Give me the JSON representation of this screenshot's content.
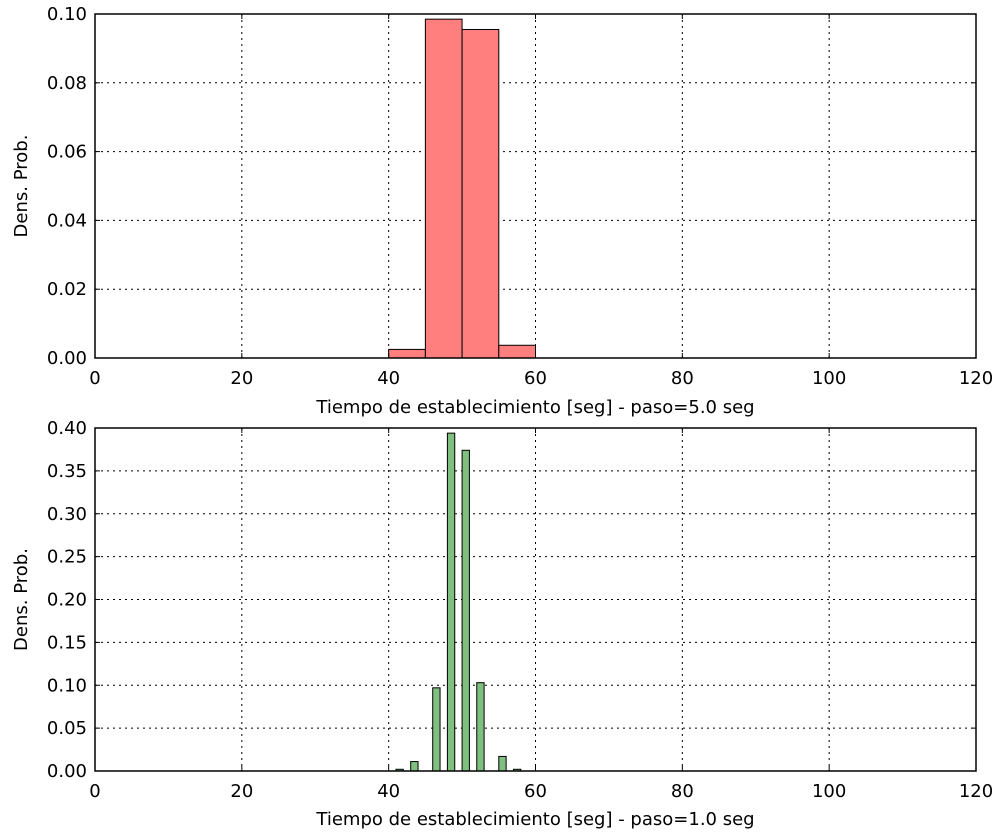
{
  "chart_data": [
    {
      "type": "bar",
      "title": "",
      "xlabel": "Tiempo de establecimiento [seg] - paso=5.0 seg",
      "ylabel": "Dens. Prob.",
      "xlim": [
        0,
        120
      ],
      "ylim": [
        0,
        0.1
      ],
      "xticks": [
        0,
        20,
        40,
        60,
        80,
        100,
        120
      ],
      "xtick_labels": [
        "0",
        "20",
        "40",
        "60",
        "80",
        "100",
        "120"
      ],
      "yticks": [
        0.0,
        0.02,
        0.04,
        0.06,
        0.08,
        0.1
      ],
      "ytick_labels": [
        "0.00",
        "0.02",
        "0.04",
        "0.06",
        "0.08",
        "0.10"
      ],
      "grid": true,
      "bar_color": "#ff7f7f",
      "edge_color": "#000000",
      "bars": [
        {
          "x": 40,
          "width": 5,
          "value": 0.0025
        },
        {
          "x": 45,
          "width": 5,
          "value": 0.0985
        },
        {
          "x": 50,
          "width": 5,
          "value": 0.0955
        },
        {
          "x": 55,
          "width": 5,
          "value": 0.0037
        }
      ]
    },
    {
      "type": "bar",
      "title": "",
      "xlabel": "Tiempo de establecimiento [seg] - paso=1.0 seg",
      "ylabel": "Dens. Prob.",
      "xlim": [
        0,
        120
      ],
      "ylim": [
        0,
        0.4
      ],
      "xticks": [
        0,
        20,
        40,
        60,
        80,
        100,
        120
      ],
      "xtick_labels": [
        "0",
        "20",
        "40",
        "60",
        "80",
        "100",
        "120"
      ],
      "yticks": [
        0.0,
        0.05,
        0.1,
        0.15,
        0.2,
        0.25,
        0.3,
        0.35,
        0.4
      ],
      "ytick_labels": [
        "0.00",
        "0.05",
        "0.10",
        "0.15",
        "0.20",
        "0.25",
        "0.30",
        "0.35",
        "0.40"
      ],
      "grid": true,
      "bar_color": "#7fbf7f",
      "edge_color": "#000000",
      "bars": [
        {
          "x": 41,
          "width": 1,
          "value": 0.002
        },
        {
          "x": 43,
          "width": 1,
          "value": 0.011
        },
        {
          "x": 46,
          "width": 1,
          "value": 0.097
        },
        {
          "x": 48,
          "width": 1,
          "value": 0.394
        },
        {
          "x": 50,
          "width": 1,
          "value": 0.374
        },
        {
          "x": 52,
          "width": 1,
          "value": 0.103
        },
        {
          "x": 55,
          "width": 1,
          "value": 0.017
        },
        {
          "x": 57,
          "width": 1,
          "value": 0.002
        }
      ]
    }
  ]
}
